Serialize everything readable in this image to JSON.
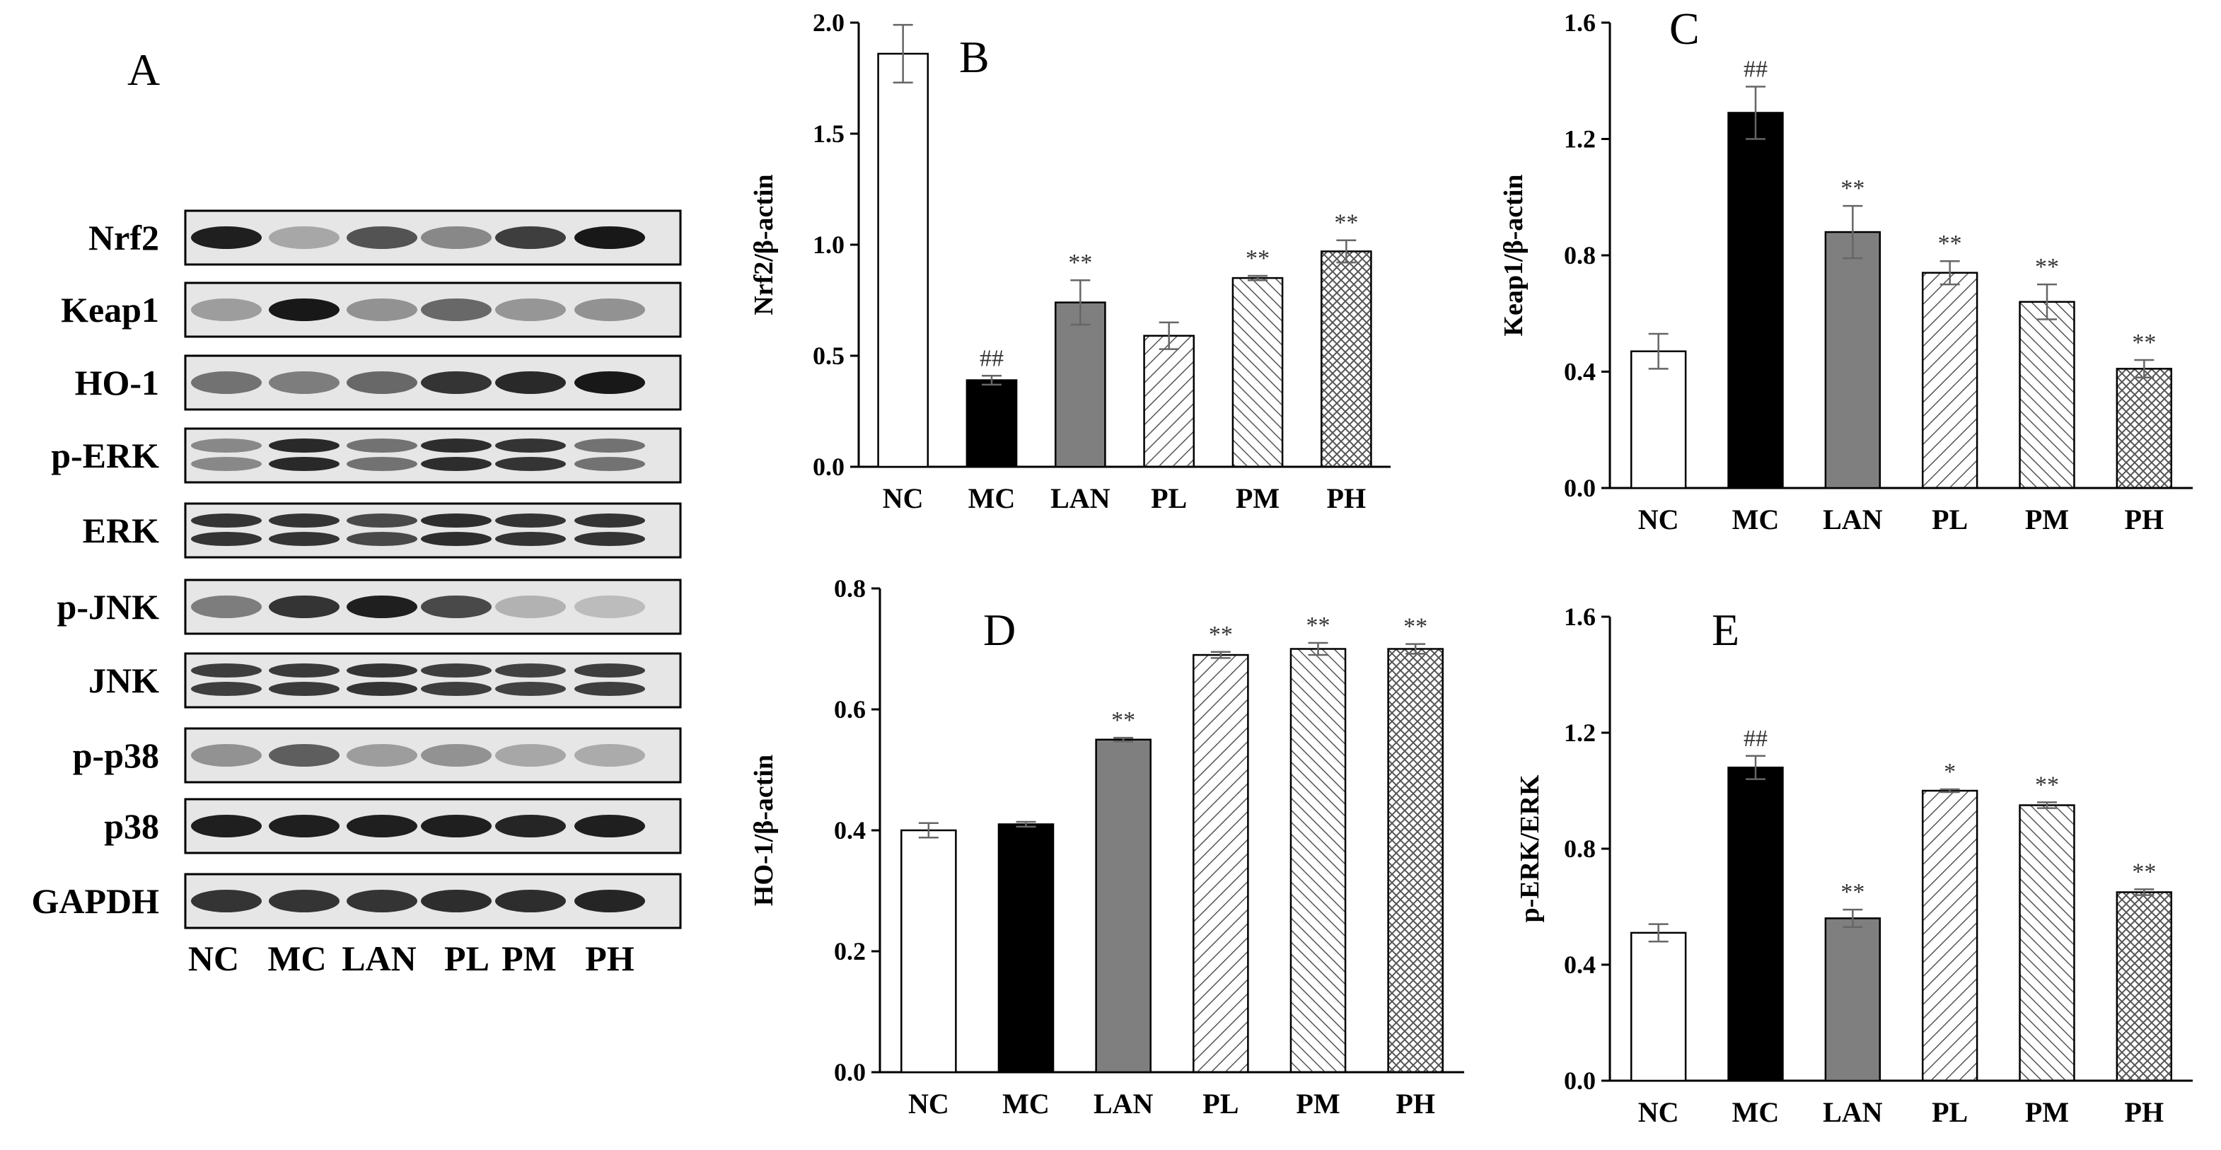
{
  "blot": {
    "panel": "A",
    "rows": [
      "Nrf2",
      "Keap1",
      "HO-1",
      "p-ERK",
      "ERK",
      "p-JNK",
      "JNK",
      "p-p38",
      "p38",
      "GAPDH"
    ],
    "lanes": [
      "NC",
      "MC",
      "LAN",
      "PL",
      "PM",
      "PH"
    ]
  },
  "chart_data": [
    {
      "type": "bar",
      "panel": "B",
      "ylabel": "Nrf2/β-actin",
      "ylim": [
        0,
        2.0
      ],
      "yticks": [
        "0.0",
        "0.5",
        "1.0",
        "1.5",
        "2.0"
      ],
      "categories": [
        "NC",
        "MC",
        "LAN",
        "PL",
        "PM",
        "PH"
      ],
      "values": [
        1.86,
        0.39,
        0.74,
        0.59,
        0.85,
        0.97
      ],
      "errors": [
        0.13,
        0.02,
        0.1,
        0.06,
        0.01,
        0.05
      ],
      "significance": [
        "",
        "##",
        "**",
        "",
        "**",
        "**"
      ]
    },
    {
      "type": "bar",
      "panel": "C",
      "ylabel": "Keap1/β-actin",
      "ylim": [
        0,
        1.6
      ],
      "yticks": [
        "0.0",
        "0.4",
        "0.8",
        "1.2",
        "1.6"
      ],
      "categories": [
        "NC",
        "MC",
        "LAN",
        "PL",
        "PM",
        "PH"
      ],
      "values": [
        0.47,
        1.29,
        0.88,
        0.74,
        0.64,
        0.41
      ],
      "errors": [
        0.06,
        0.09,
        0.09,
        0.04,
        0.06,
        0.03
      ],
      "significance": [
        "",
        "##",
        "**",
        "**",
        "**",
        "**"
      ]
    },
    {
      "type": "bar",
      "panel": "D",
      "ylabel": "HO-1/β-actin",
      "ylim": [
        0,
        0.8
      ],
      "yticks": [
        "0.0",
        "0.2",
        "0.4",
        "0.6",
        "0.8"
      ],
      "categories": [
        "NC",
        "MC",
        "LAN",
        "PL",
        "PM",
        "PH"
      ],
      "values": [
        0.4,
        0.41,
        0.55,
        0.69,
        0.7,
        0.7
      ],
      "errors": [
        0.012,
        0.004,
        0.003,
        0.005,
        0.01,
        0.008
      ],
      "significance": [
        "",
        "",
        "**",
        "**",
        "**",
        "**"
      ]
    },
    {
      "type": "bar",
      "panel": "E",
      "ylabel": "p-ERK/ERK",
      "ylim": [
        0,
        1.6
      ],
      "yticks": [
        "0.0",
        "0.4",
        "0.8",
        "1.2",
        "1.6"
      ],
      "categories": [
        "NC",
        "MC",
        "LAN",
        "PL",
        "PM",
        "PH"
      ],
      "values": [
        0.51,
        1.08,
        0.56,
        1.0,
        0.95,
        0.65
      ],
      "errors": [
        0.03,
        0.04,
        0.03,
        0.005,
        0.01,
        0.01
      ],
      "significance": [
        "",
        "##",
        "**",
        "*",
        "**",
        "**"
      ]
    }
  ],
  "colors": {
    "NC": "#ffffff",
    "MC": "#000000",
    "LAN": "#7f7f7f",
    "pattern_stroke": "#444444",
    "axis": "#000000"
  }
}
